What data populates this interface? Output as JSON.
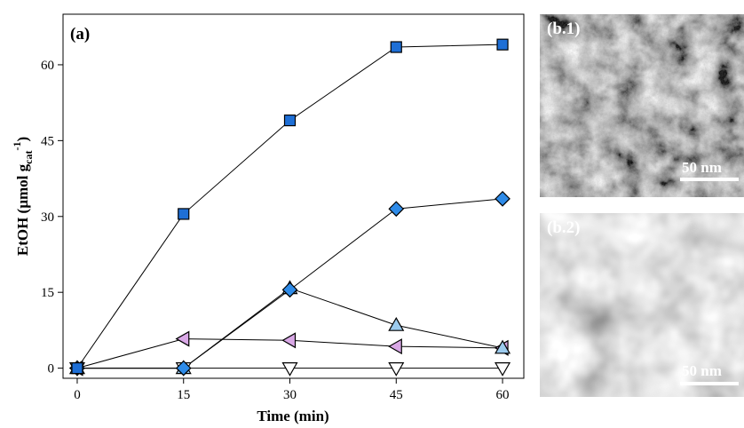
{
  "chart_data": {
    "type": "line",
    "panel_label": "(a)",
    "xlabel": "Time (min)",
    "ylabel_main": "EtOH (µmol g",
    "ylabel_sub": "cat",
    "ylabel_sup": "-1",
    "ylabel_close": ")",
    "x": [
      0,
      15,
      30,
      45,
      60
    ],
    "xticks": [
      "0",
      "15",
      "30",
      "45",
      "60"
    ],
    "yticks": [
      "0",
      "15",
      "30",
      "45",
      "60"
    ],
    "xlim": [
      -2,
      63
    ],
    "ylim": [
      -2,
      70
    ],
    "grid": false,
    "series": [
      {
        "marker": "square",
        "color": "#1e6fd6",
        "values": [
          0,
          30.5,
          49,
          63.5,
          64
        ]
      },
      {
        "marker": "diamond",
        "color": "#2e8be8",
        "values": [
          0,
          0,
          15.5,
          31.5,
          33.5
        ]
      },
      {
        "marker": "triangle-up",
        "color": "#9ccbee",
        "values": [
          0,
          0,
          15.8,
          8.5,
          4
        ]
      },
      {
        "marker": "triangle-left",
        "color": "#d9a8e6",
        "values": [
          0,
          5.8,
          5.5,
          4.3,
          4
        ]
      },
      {
        "marker": "triangle-down",
        "color": "#ffffff",
        "values": [
          0,
          0,
          0,
          0,
          0
        ]
      }
    ]
  },
  "images": [
    {
      "label": "(b.1)",
      "scale": "50 nm"
    },
    {
      "label": "(b.2)",
      "scale": "50 nm"
    }
  ]
}
